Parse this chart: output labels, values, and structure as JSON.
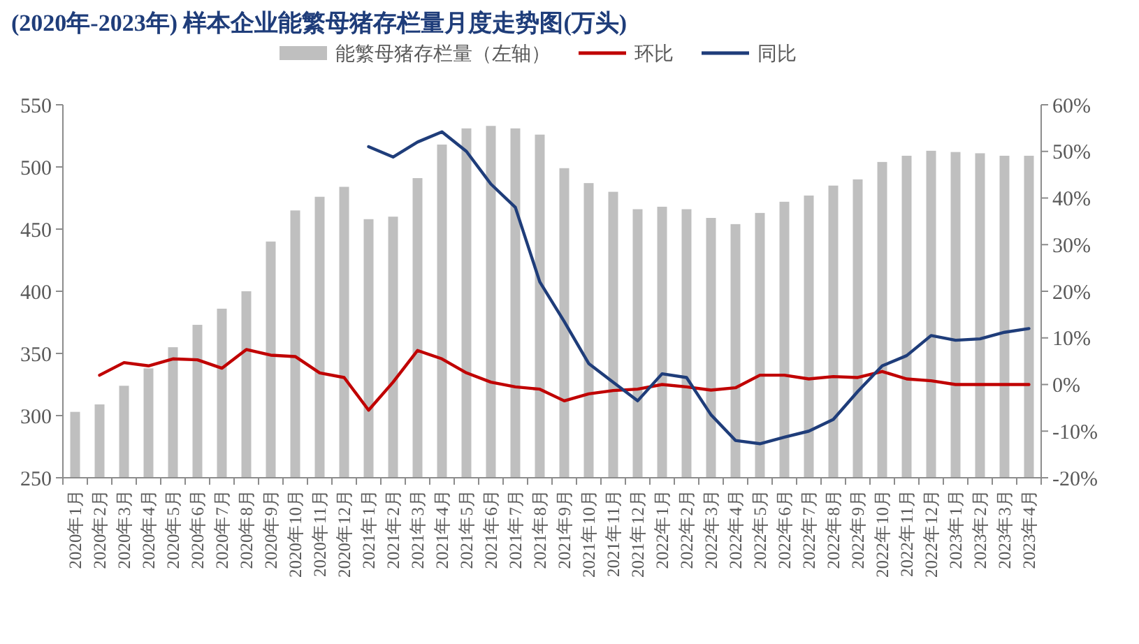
{
  "chart_data": {
    "type": "bar",
    "title": "(2020年-2023年) 样本企业能繁母猪存栏量月度走势图(万头)",
    "categories": [
      "2020年1月",
      "2020年2月",
      "2020年3月",
      "2020年4月",
      "2020年5月",
      "2020年6月",
      "2020年7月",
      "2020年8月",
      "2020年9月",
      "2020年10月",
      "2020年11月",
      "2020年12月",
      "2021年1月",
      "2021年2月",
      "2021年3月",
      "2021年4月",
      "2021年5月",
      "2021年6月",
      "2021年7月",
      "2021年8月",
      "2021年9月",
      "2021年10月",
      "2021年11月",
      "2021年12月",
      "2022年1月",
      "2022年2月",
      "2022年3月",
      "2022年4月",
      "2022年5月",
      "2022年6月",
      "2022年7月",
      "2022年8月",
      "2022年9月",
      "2022年10月",
      "2022年11月",
      "2022年12月",
      "2023年1月",
      "2023年2月",
      "2023年3月",
      "2023年4月"
    ],
    "series": [
      {
        "name": "能繁母猪存栏量（左轴）",
        "color": "#bfbfbf",
        "values": [
          303,
          309,
          324,
          338,
          355,
          373,
          386,
          400,
          440,
          465,
          476,
          484,
          458,
          460,
          491,
          518,
          531,
          533,
          531,
          526,
          499,
          487,
          480,
          466,
          468,
          466,
          459,
          454,
          463,
          472,
          477,
          485,
          490,
          504,
          509,
          513,
          512,
          511,
          509,
          509
        ]
      },
      {
        "name": "环比",
        "type": "line",
        "axis": "y2",
        "color": "#c00000",
        "values": [
          null,
          2.0,
          4.7,
          4.0,
          5.5,
          5.3,
          3.5,
          7.5,
          6.3,
          6.0,
          2.5,
          1.5,
          -5.5,
          0.5,
          7.3,
          5.5,
          2.5,
          0.5,
          -0.5,
          -1.0,
          -3.5,
          -2.0,
          -1.3,
          -1.0,
          0,
          -0.5,
          -1.2,
          -0.7,
          2.0,
          2.0,
          1.2,
          1.7,
          1.5,
          2.8,
          1.2,
          0.8,
          0,
          0,
          0,
          0
        ]
      },
      {
        "name": "同比",
        "type": "line",
        "axis": "y2",
        "color": "#1f3d7a",
        "values": [
          null,
          null,
          null,
          null,
          null,
          null,
          null,
          null,
          null,
          null,
          null,
          null,
          51.0,
          48.8,
          52.0,
          54.2,
          50.0,
          43.0,
          38.0,
          22.0,
          13.5,
          4.5,
          0.5,
          -3.5,
          2.3,
          1.5,
          -6.5,
          -12.0,
          -12.7,
          -11.3,
          -10.0,
          -7.5,
          -1.5,
          4.0,
          6.2,
          10.5,
          9.5,
          9.8,
          11.2,
          12.0
        ]
      }
    ],
    "ylim": [
      250,
      550
    ],
    "yticks": [
      250,
      300,
      350,
      400,
      450,
      500,
      550
    ],
    "y2lim": [
      -20,
      60
    ],
    "y2ticks": [
      {
        "value": -20,
        "label": "-20%"
      },
      {
        "value": -10,
        "label": "-10%"
      },
      {
        "value": 0,
        "label": "0%"
      },
      {
        "value": 10,
        "label": "10%"
      },
      {
        "value": 20,
        "label": "20%"
      },
      {
        "value": 30,
        "label": "30%"
      },
      {
        "value": 40,
        "label": "40%"
      },
      {
        "value": 50,
        "label": "50%"
      },
      {
        "value": 60,
        "label": "60%"
      }
    ],
    "legend": "top"
  }
}
